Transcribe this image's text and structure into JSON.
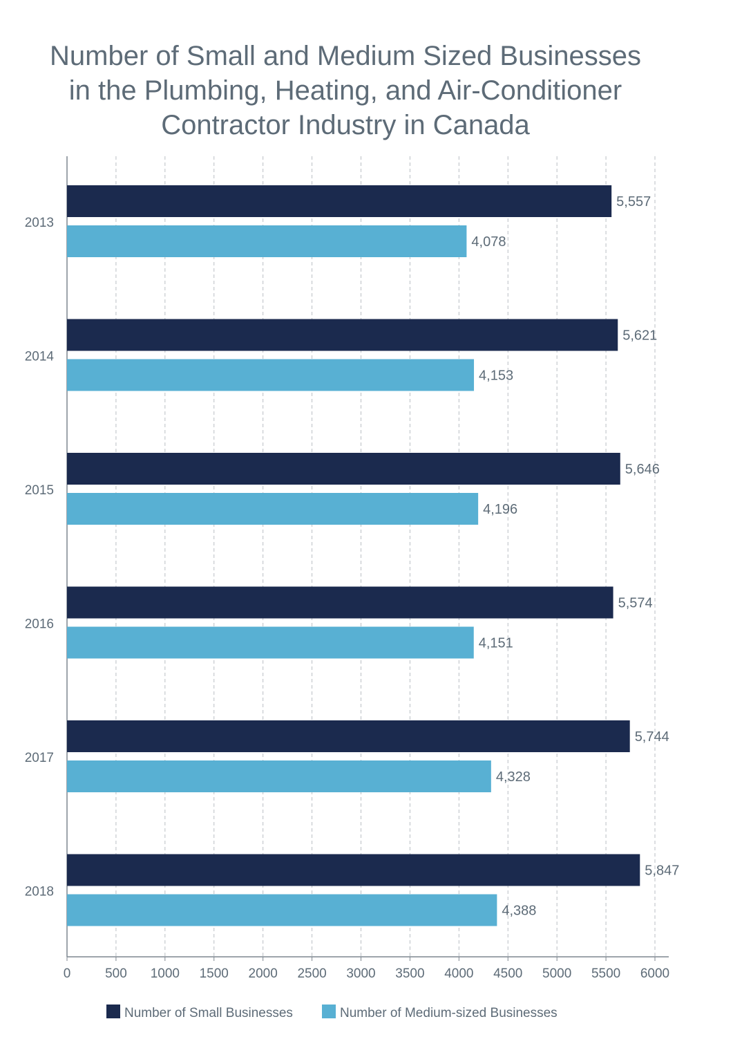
{
  "chart_data": {
    "type": "bar",
    "orientation": "horizontal",
    "title_lines": [
      "Number of Small and Medium Sized Businesses",
      "in the Plumbing, Heating, and Air-Conditioner",
      "Contractor Industry in Canada"
    ],
    "categories": [
      "2013",
      "2014",
      "2015",
      "2016",
      "2017",
      "2018"
    ],
    "series": [
      {
        "name": "Number of Small Businesses",
        "color": "#1b2a4e",
        "values": [
          5557,
          5621,
          5646,
          5574,
          5744,
          5847
        ],
        "labels": [
          "5,557",
          "5,621",
          "5,646",
          "5,574",
          "5,744",
          "5,847"
        ]
      },
      {
        "name": "Number of Medium-sized Businesses",
        "color": "#58b0d3",
        "values": [
          4078,
          4153,
          4196,
          4151,
          4328,
          4388
        ],
        "labels": [
          "4,078",
          "4,153",
          "4,196",
          "4,151",
          "4,328",
          "4,388"
        ]
      }
    ],
    "xlim": [
      0,
      6000
    ],
    "xticks": [
      0,
      500,
      1000,
      1500,
      2000,
      2500,
      3000,
      3500,
      4000,
      4500,
      5000,
      5500,
      6000
    ],
    "grid": "vertical dashed",
    "legend_position": "bottom",
    "text_color": "#5d6b77"
  }
}
